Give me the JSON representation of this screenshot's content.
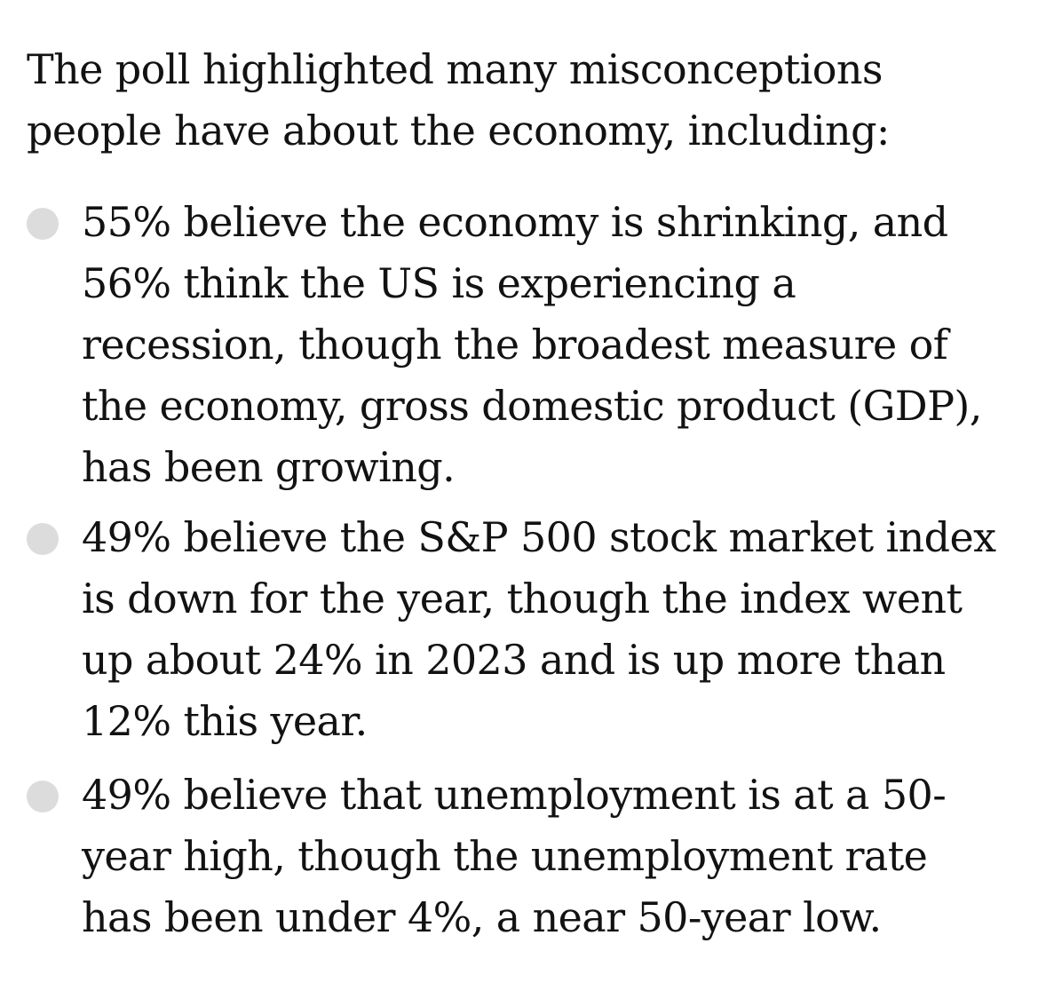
{
  "intro": {
    "text": "The poll highlighted many misconceptions people have about the economy, including:"
  },
  "bullets": [
    {
      "text": "55% believe the economy is shrinking, and 56% think the US is experiencing a recession, though the broadest measure of the economy, gross domestic product (GDP), has been growing."
    },
    {
      "text": "49% believe the S&P 500 stock market index is down for the year, though the index went up about 24% in 2023 and is up more than 12% this year."
    },
    {
      "text": "49% believe that unemployment is at a 50-year high, though the unemployment rate has been under 4%, a near 50-year low."
    }
  ],
  "colors": {
    "text": "#121212",
    "bullet": "#dcdcdc",
    "background": "#ffffff"
  }
}
